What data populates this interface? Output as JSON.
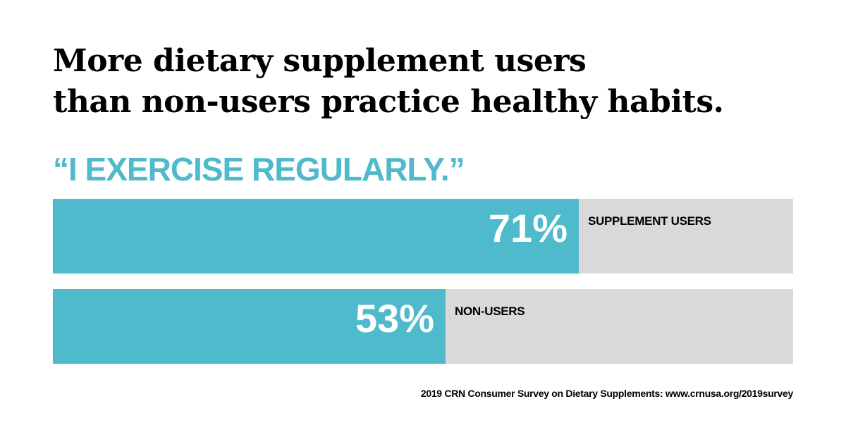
{
  "title": {
    "line1": "More dietary supplement users",
    "line2": "than non-users practice healthy habits."
  },
  "subtitle": "“I EXERCISE REGULARLY.”",
  "colors": {
    "accent": "#4fbacb",
    "track": "#d9d9d9",
    "text": "#000000"
  },
  "chart_data": {
    "type": "bar",
    "orientation": "horizontal",
    "categories": [
      "SUPPLEMENT USERS",
      "NON-USERS"
    ],
    "values": [
      71,
      53
    ],
    "data_labels": [
      "71%",
      "53%"
    ],
    "unit": "%",
    "xlim": [
      0,
      100
    ],
    "grid": false
  },
  "source": "2019 CRN Consumer Survey on Dietary Supplements: www.crnusa.org/2019survey"
}
